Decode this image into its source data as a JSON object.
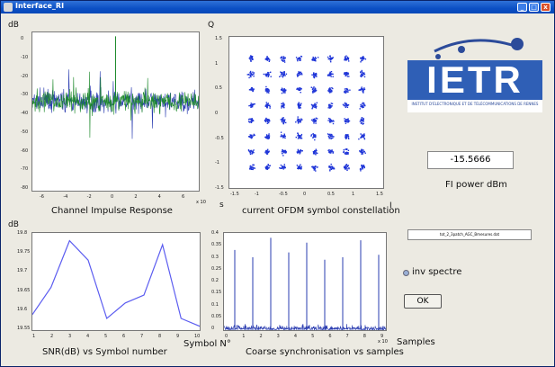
{
  "window": {
    "title": "Interface_RI",
    "min": "_",
    "max": "□",
    "close": "x"
  },
  "plots": {
    "impulse": {
      "ylabel": "dB",
      "title": "Channel Impulse Response",
      "exponent": "x 10",
      "yticks": [
        "0",
        "-10",
        "-20",
        "-30",
        "-40",
        "-50",
        "-60",
        "-70",
        "-80"
      ],
      "xticks": [
        "-6",
        "-4",
        "-2",
        "0",
        "2",
        "4",
        "6"
      ]
    },
    "constellation": {
      "ylabel": "Q",
      "xlabel_left": "s",
      "xlabel": "I",
      "title": "current OFDM symbol constellation",
      "yticks": [
        "1.5",
        "1",
        "0.5",
        "0",
        "-0.5",
        "-1",
        "-1.5"
      ],
      "xticks": [
        "-1.5",
        "-1",
        "-0.5",
        "0",
        "0.5",
        "1",
        "1.5"
      ]
    },
    "snr": {
      "ylabel": "dB",
      "title": "SNR(dB) vs Symbol number",
      "xlabel": "Symbol N°",
      "yticks": [
        "19.8",
        "19.75",
        "19.7",
        "19.65",
        "19.6",
        "19.55"
      ],
      "xticks": [
        "1",
        "2",
        "3",
        "4",
        "5",
        "6",
        "7",
        "8",
        "9",
        "10"
      ]
    },
    "sync": {
      "title": "Coarse synchronisation vs samples",
      "exponent": "x 10",
      "xlabel": "Samples",
      "yticks": [
        "0.4",
        "0.35",
        "0.3",
        "0.25",
        "0.2",
        "0.15",
        "0.1",
        "0.05",
        "0"
      ],
      "xticks": [
        "0",
        "1",
        "2",
        "3",
        "4",
        "5",
        "6",
        "7",
        "8",
        "9"
      ]
    }
  },
  "logo": {
    "name": "IETR",
    "subtitle": "INSTITUT D'ÉLECTRONIQUE ET DE TÉLÉCOMMUNICATIONS DE RENNES"
  },
  "power": {
    "value": "-15.5666",
    "label": "FI power dBm"
  },
  "file": {
    "value": "tot_2_3patch_AGC_Bmesures.dat"
  },
  "radio": {
    "label": "inv spectre"
  },
  "ok": {
    "label": "OK"
  },
  "chart_data": [
    {
      "type": "line",
      "title": "Channel Impulse Response",
      "ylabel": "dB",
      "ylim": [
        -80,
        0
      ],
      "xlim": [
        -6,
        6
      ],
      "x_exponent": 3,
      "series_colors": [
        "#2a3cb0",
        "#1e8a2c"
      ],
      "baseline": -35,
      "peak": {
        "x": 0,
        "y": -2
      }
    },
    {
      "type": "scatter",
      "title": "current OFDM symbol constellation",
      "xlabel": "I",
      "ylabel": "Q",
      "xlim": [
        -1.5,
        1.5
      ],
      "ylim": [
        -1.5,
        1.5
      ],
      "grid_levels": [
        -1.08,
        -0.77,
        -0.46,
        -0.15,
        0.15,
        0.46,
        0.77,
        1.08
      ],
      "color": "#1f35d8"
    },
    {
      "type": "line",
      "title": "SNR(dB) vs Symbol number",
      "xlabel": "Symbol N°",
      "ylabel": "dB",
      "ylim": [
        19.55,
        19.8
      ],
      "xlim": [
        1,
        10
      ],
      "x": [
        1,
        2,
        3,
        4,
        5,
        6,
        7,
        8,
        9,
        10
      ],
      "y": [
        19.59,
        19.66,
        19.78,
        19.73,
        19.58,
        19.62,
        19.64,
        19.77,
        19.58,
        19.56
      ],
      "color": "#5b5cf0"
    },
    {
      "type": "line",
      "title": "Coarse synchronisation vs samples",
      "xlabel": "Samples",
      "ylim": [
        0,
        0.4
      ],
      "xlim": [
        0,
        9
      ],
      "x_exponent": 4,
      "peaks_x": [
        0.6,
        1.6,
        2.6,
        3.6,
        4.6,
        5.6,
        6.6,
        7.6,
        8.6
      ],
      "peaks_y": [
        0.33,
        0.3,
        0.38,
        0.32,
        0.36,
        0.29,
        0.3,
        0.37,
        0.31
      ],
      "noise": 0.02,
      "color": "#2a3cb0"
    }
  ]
}
